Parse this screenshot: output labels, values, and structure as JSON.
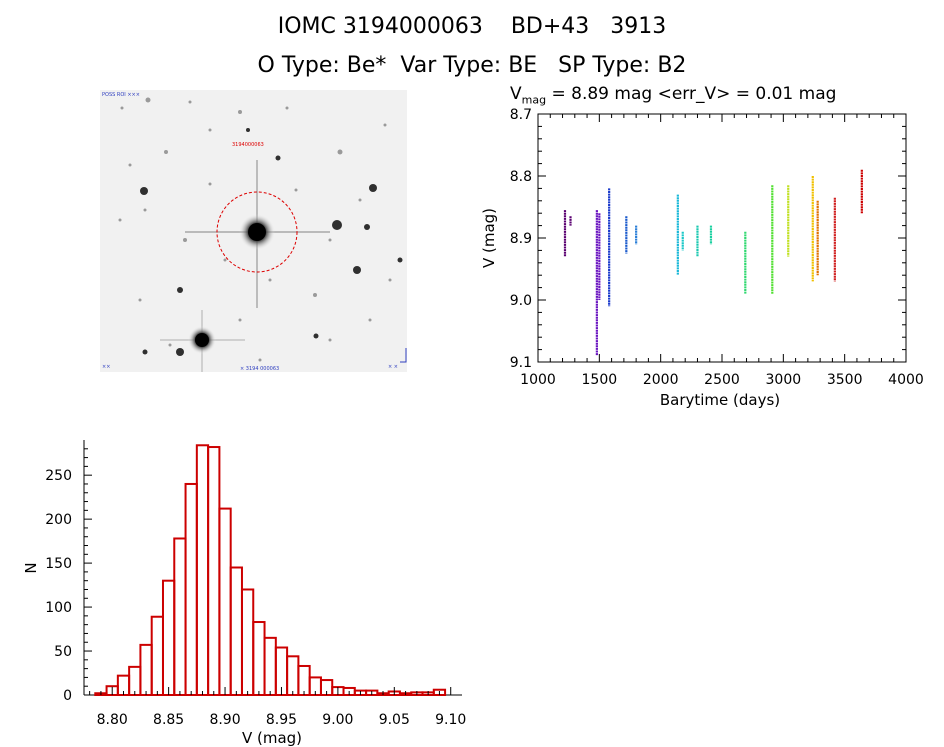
{
  "header": {
    "line1": "IOMC 3194000063    BD+43   3913",
    "line2": "O Type: Be*  Var Type: BE   SP Type: B2"
  },
  "thumbnail": {
    "label_top_left": "POSS ROI ×××",
    "label_marker": "3194000063",
    "label_bottom_left": "××",
    "label_bottom_center": "× 3194 000063",
    "label_bottom_right": "× ×",
    "marker_color": "#dd0000"
  },
  "lightcurve": {
    "vmag_symbol": "V",
    "vmag_sub": "mag",
    "vmag_rest": " = 8.89 mag <err_V> = 0.01 mag",
    "xlabel": "Barytime (days)",
    "ylabel": "V (mag)",
    "xlim": [
      1000,
      4000
    ],
    "ylim": [
      8.7,
      9.1
    ],
    "xticks": [
      "1000",
      "1500",
      "2000",
      "2500",
      "3000",
      "3500",
      "4000"
    ],
    "yticks": [
      "8.7",
      "8.8",
      "8.9",
      "9.0",
      "9.1"
    ]
  },
  "chart_data": [
    {
      "type": "scatter",
      "title": "V_mag = 8.89 mag <err_V> = 0.01 mag",
      "xlabel": "Barytime (days)",
      "ylabel": "V (mag)",
      "xlim": [
        1000,
        4000
      ],
      "ylim": [
        9.1,
        8.7
      ],
      "y_inverted": true,
      "series": [
        {
          "name": "group-1",
          "color": "#5a0070",
          "x": [
            1220
          ],
          "ymin": [
            8.855
          ],
          "ymax": [
            8.93
          ]
        },
        {
          "name": "group-2",
          "color": "#5a0070",
          "x": [
            1265
          ],
          "ymin": [
            8.865
          ],
          "ymax": [
            8.88
          ]
        },
        {
          "name": "group-3",
          "color": "#6a14c0",
          "x": [
            1480
          ],
          "ymin": [
            8.855
          ],
          "ymax": [
            9.09
          ]
        },
        {
          "name": "group-4",
          "color": "#6a14c0",
          "x": [
            1500
          ],
          "ymin": [
            8.86
          ],
          "ymax": [
            9.0
          ]
        },
        {
          "name": "group-5",
          "color": "#1a3acc",
          "x": [
            1580
          ],
          "ymin": [
            8.82
          ],
          "ymax": [
            9.01
          ]
        },
        {
          "name": "group-6",
          "color": "#1a5acc",
          "x": [
            1720
          ],
          "ymin": [
            8.865
          ],
          "ymax": [
            8.925
          ]
        },
        {
          "name": "group-7",
          "color": "#2a7fd8",
          "x": [
            1800
          ],
          "ymin": [
            8.88
          ],
          "ymax": [
            8.91
          ]
        },
        {
          "name": "group-8",
          "color": "#1ab8d8",
          "x": [
            2140
          ],
          "ymin": [
            8.83
          ],
          "ymax": [
            8.96
          ]
        },
        {
          "name": "group-9",
          "color": "#1ac8c8",
          "x": [
            2180
          ],
          "ymin": [
            8.89
          ],
          "ymax": [
            8.92
          ]
        },
        {
          "name": "group-10",
          "color": "#1ac8b0",
          "x": [
            2300
          ],
          "ymin": [
            8.88
          ],
          "ymax": [
            8.93
          ]
        },
        {
          "name": "group-11",
          "color": "#1ad0a0",
          "x": [
            2410
          ],
          "ymin": [
            8.88
          ],
          "ymax": [
            8.91
          ]
        },
        {
          "name": "group-12",
          "color": "#30d870",
          "x": [
            2690
          ],
          "ymin": [
            8.89
          ],
          "ymax": [
            8.99
          ]
        },
        {
          "name": "group-13",
          "color": "#50e030",
          "x": [
            2910
          ],
          "ymin": [
            8.815
          ],
          "ymax": [
            8.99
          ]
        },
        {
          "name": "group-14",
          "color": "#c0e020",
          "x": [
            3040
          ],
          "ymin": [
            8.815
          ],
          "ymax": [
            8.93
          ]
        },
        {
          "name": "group-15",
          "color": "#f0c000",
          "x": [
            3240
          ],
          "ymin": [
            8.8
          ],
          "ymax": [
            8.97
          ]
        },
        {
          "name": "group-16",
          "color": "#e07000",
          "x": [
            3280
          ],
          "ymin": [
            8.84
          ],
          "ymax": [
            8.96
          ]
        },
        {
          "name": "group-17",
          "color": "#d02020",
          "x": [
            3420
          ],
          "ymin": [
            8.835
          ],
          "ymax": [
            8.97
          ]
        },
        {
          "name": "group-18",
          "color": "#cc0000",
          "x": [
            3640
          ],
          "ymin": [
            8.79
          ],
          "ymax": [
            8.86
          ]
        }
      ]
    },
    {
      "type": "bar",
      "title": "",
      "xlabel": "V (mag)",
      "ylabel": "N",
      "xlim": [
        8.775,
        9.11
      ],
      "ylim": [
        0,
        290
      ],
      "xticks": [
        "8.80",
        "8.85",
        "8.90",
        "8.95",
        "9.00",
        "9.05",
        "9.10"
      ],
      "yticks": [
        "0",
        "50",
        "100",
        "150",
        "200",
        "250"
      ],
      "bin_width": 0.01,
      "bin_centers": [
        8.79,
        8.8,
        8.81,
        8.82,
        8.83,
        8.84,
        8.85,
        8.86,
        8.87,
        8.88,
        8.89,
        8.9,
        8.91,
        8.92,
        8.93,
        8.94,
        8.95,
        8.96,
        8.97,
        8.98,
        8.99,
        9.0,
        9.01,
        9.02,
        9.03,
        9.04,
        9.05,
        9.06,
        9.07,
        9.08,
        9.09
      ],
      "values": [
        2,
        10,
        22,
        32,
        57,
        89,
        130,
        178,
        240,
        284,
        282,
        212,
        145,
        120,
        83,
        65,
        54,
        44,
        33,
        20,
        17,
        9,
        8,
        5,
        5,
        2,
        4,
        2,
        3,
        3,
        6
      ],
      "color": "#cc0000"
    }
  ]
}
